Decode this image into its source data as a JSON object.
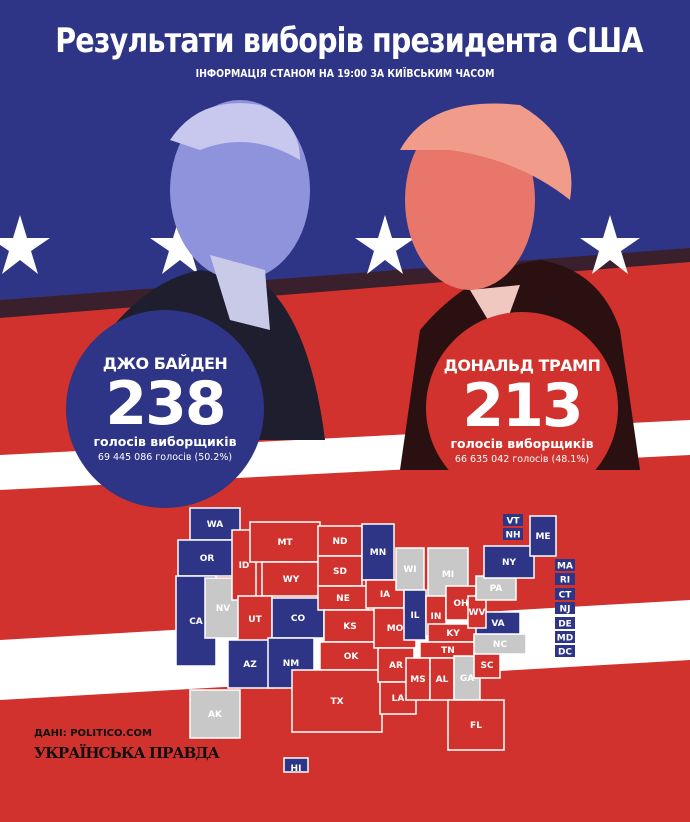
{
  "title": "Результати виборів президента США",
  "subtitle": "ІНФОРМАЦІЯ СТАНОМ НА 19:00 ЗА КИЇВСЬКИМ ЧАСОМ",
  "colors": {
    "biden": "#2e3486",
    "trump": "#d2322d",
    "undecided": "#c8c8c8",
    "background_top": "#2e3486",
    "background_bottom": "#d2322d"
  },
  "candidates": {
    "biden": {
      "name": "ДЖО БАЙДЕН",
      "electoral": "238",
      "electoral_label": "голосів виборщиків",
      "popular": "69 445 086 голосів (50.2%)"
    },
    "trump": {
      "name": "ДОНАЛЬД ТРАМП",
      "electoral": "213",
      "electoral_label": "голосів виборщиків",
      "popular": "66 635 042 голосів (48.1%)"
    }
  },
  "states": [
    {
      "code": "WA",
      "winner": "biden"
    },
    {
      "code": "OR",
      "winner": "biden"
    },
    {
      "code": "CA",
      "winner": "biden"
    },
    {
      "code": "NV",
      "winner": "undecided"
    },
    {
      "code": "ID",
      "winner": "trump"
    },
    {
      "code": "MT",
      "winner": "trump"
    },
    {
      "code": "WY",
      "winner": "trump"
    },
    {
      "code": "UT",
      "winner": "trump"
    },
    {
      "code": "AZ",
      "winner": "biden"
    },
    {
      "code": "CO",
      "winner": "biden"
    },
    {
      "code": "NM",
      "winner": "biden"
    },
    {
      "code": "ND",
      "winner": "trump"
    },
    {
      "code": "SD",
      "winner": "trump"
    },
    {
      "code": "NE",
      "winner": "trump"
    },
    {
      "code": "KS",
      "winner": "trump"
    },
    {
      "code": "OK",
      "winner": "trump"
    },
    {
      "code": "TX",
      "winner": "trump"
    },
    {
      "code": "MN",
      "winner": "biden"
    },
    {
      "code": "IA",
      "winner": "trump"
    },
    {
      "code": "MO",
      "winner": "trump"
    },
    {
      "code": "AR",
      "winner": "trump"
    },
    {
      "code": "LA",
      "winner": "trump"
    },
    {
      "code": "WI",
      "winner": "undecided"
    },
    {
      "code": "IL",
      "winner": "biden"
    },
    {
      "code": "MI",
      "winner": "undecided"
    },
    {
      "code": "IN",
      "winner": "trump"
    },
    {
      "code": "OH",
      "winner": "trump"
    },
    {
      "code": "KY",
      "winner": "trump"
    },
    {
      "code": "TN",
      "winner": "trump"
    },
    {
      "code": "MS",
      "winner": "trump"
    },
    {
      "code": "AL",
      "winner": "trump"
    },
    {
      "code": "GA",
      "winner": "undecided"
    },
    {
      "code": "FL",
      "winner": "trump"
    },
    {
      "code": "SC",
      "winner": "trump"
    },
    {
      "code": "NC",
      "winner": "undecided"
    },
    {
      "code": "VA",
      "winner": "biden"
    },
    {
      "code": "WV",
      "winner": "trump"
    },
    {
      "code": "PA",
      "winner": "undecided"
    },
    {
      "code": "NY",
      "winner": "biden"
    },
    {
      "code": "ME",
      "winner": "biden"
    },
    {
      "code": "AK",
      "winner": "undecided"
    },
    {
      "code": "HI",
      "winner": "biden"
    },
    {
      "code": "VT",
      "winner": "biden"
    },
    {
      "code": "NH",
      "winner": "biden"
    },
    {
      "code": "MA",
      "winner": "biden"
    },
    {
      "code": "RI",
      "winner": "biden"
    },
    {
      "code": "CT",
      "winner": "biden"
    },
    {
      "code": "NJ",
      "winner": "biden"
    },
    {
      "code": "DE",
      "winner": "biden"
    },
    {
      "code": "MD",
      "winner": "biden"
    },
    {
      "code": "DC",
      "winner": "biden"
    }
  ],
  "source": "ДАНІ: POLITICO.COM",
  "logo": "УКРАЇНСЬКА ПРАВДА"
}
